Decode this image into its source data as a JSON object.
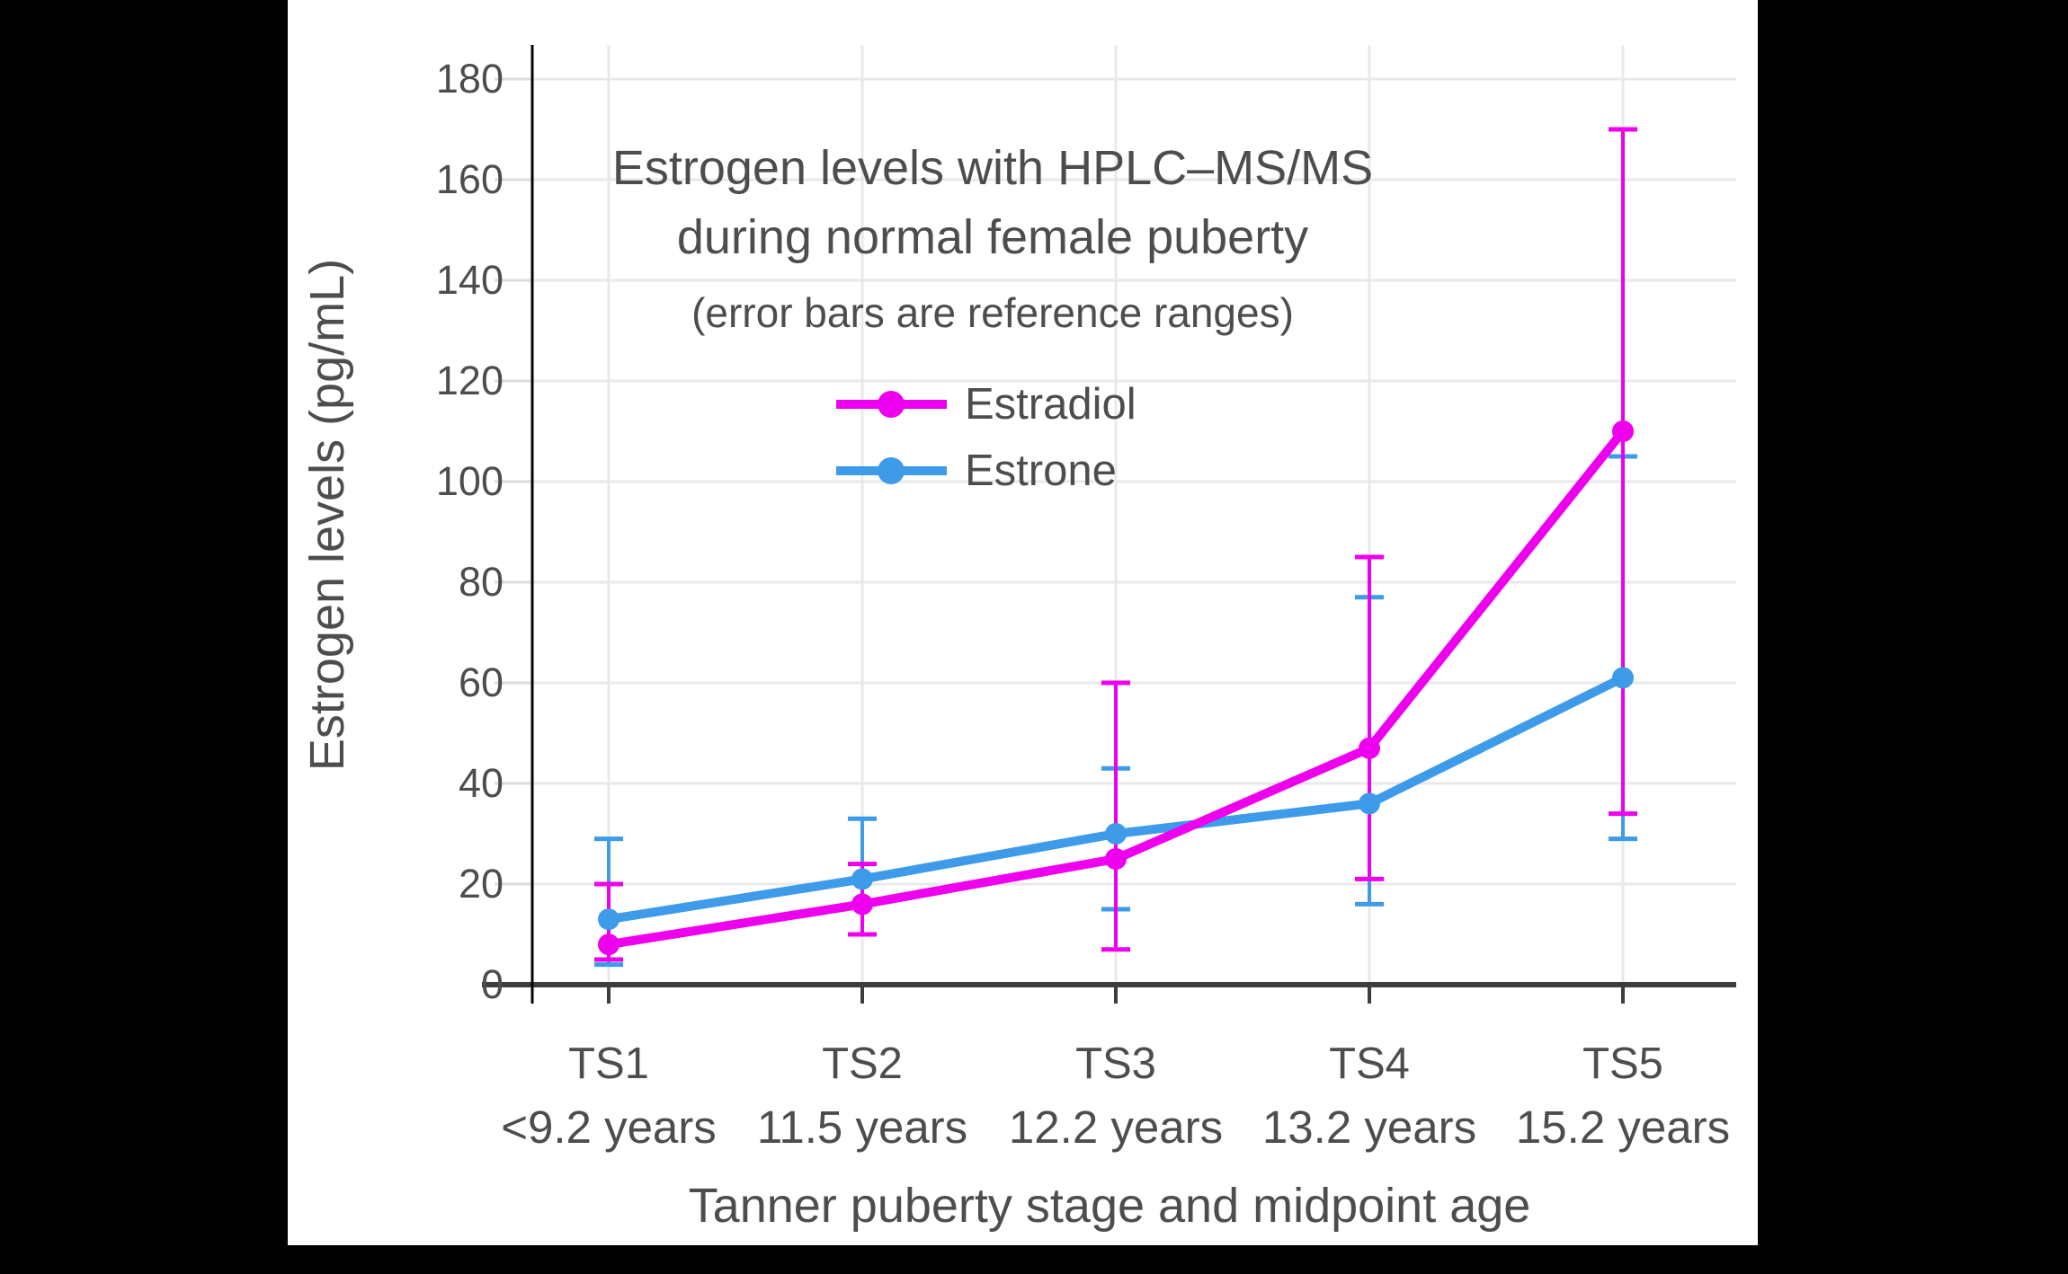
{
  "page": {
    "background": "#000000",
    "panel_background": "#FFFFFF"
  },
  "colors": {
    "estradiol": "#EE00EE",
    "estrone": "#3E9BE9",
    "text": "#4D4D4D",
    "gridline": "#E9E9E9",
    "y_tick_stub": "#DCDCDC",
    "y_axis_line": "#000000",
    "x_axis_line": "#3D3D3D"
  },
  "chart_data": {
    "type": "line",
    "title_lines": [
      "Estrogen levels with HPLC–MS/MS",
      "during normal female puberty"
    ],
    "subtitle": "(error bars are reference ranges)",
    "xlabel": "Tanner puberty stage and midpoint age",
    "ylabel": "Estrogen levels (pg/mL)",
    "error_bars": "reference ranges",
    "categories": [
      {
        "stage": "TS1",
        "age": "<9.2 years"
      },
      {
        "stage": "TS2",
        "age": "11.5 years"
      },
      {
        "stage": "TS3",
        "age": "12.2 years"
      },
      {
        "stage": "TS4",
        "age": "13.2 years"
      },
      {
        "stage": "TS5",
        "age": "15.2 years"
      }
    ],
    "ylim": [
      0,
      180
    ],
    "yticks": [
      0,
      20,
      40,
      60,
      80,
      100,
      120,
      140,
      160,
      180
    ],
    "grid": true,
    "legend_position": "upper-left-inside",
    "series": [
      {
        "name": "Estradiol",
        "color": "#EE00EE",
        "values": [
          8,
          16,
          25,
          47,
          110
        ],
        "range_low": [
          5,
          10,
          7,
          21,
          34
        ],
        "range_high": [
          20,
          24,
          60,
          85,
          170
        ]
      },
      {
        "name": "Estrone",
        "color": "#3E9BE9",
        "values": [
          13,
          21,
          30,
          36,
          61
        ],
        "range_low": [
          4,
          10,
          15,
          16,
          29
        ],
        "range_high": [
          29,
          33,
          43,
          77,
          105
        ]
      }
    ]
  }
}
